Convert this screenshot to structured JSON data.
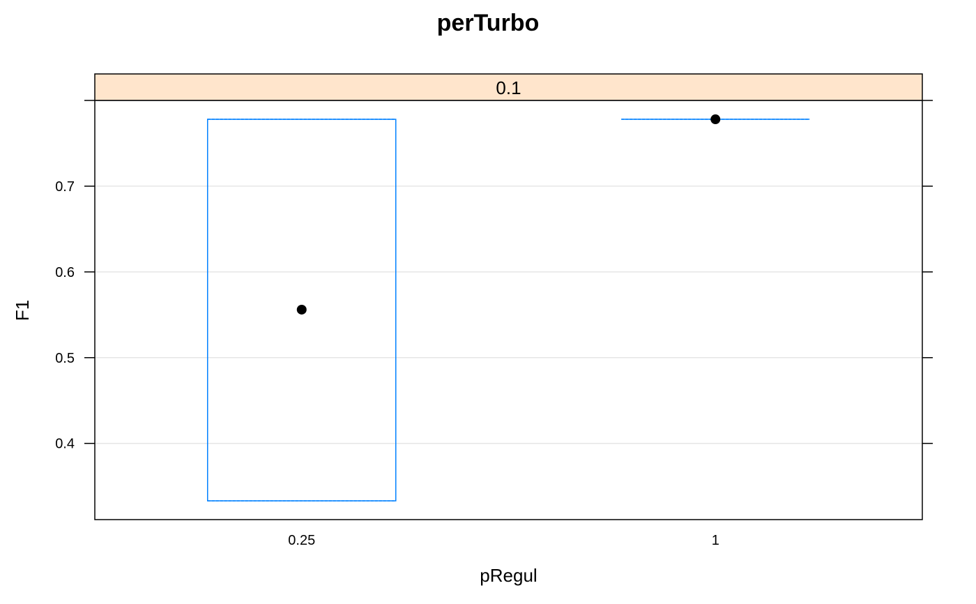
{
  "chart_data": {
    "type": "box",
    "title": "perTurbo",
    "panel_label": "0.1",
    "xlabel": "pRegul",
    "ylabel": "F1",
    "categories": [
      "0.25",
      "1"
    ],
    "boxes": [
      {
        "category": "0.25",
        "median": 0.556,
        "q1": 0.333,
        "q3": 0.778,
        "whisker_low": 0.333,
        "whisker_high": 0.778
      },
      {
        "category": "1",
        "median": 0.778,
        "q1": 0.778,
        "q3": 0.778,
        "whisker_low": 0.778,
        "whisker_high": 0.778
      }
    ],
    "yticks": [
      0.4,
      0.5,
      0.6,
      0.7
    ],
    "ytick_labels": [
      "0.4",
      "0.5",
      "0.6",
      "0.7"
    ],
    "ylim": [
      0.3111,
      0.8
    ],
    "grid": true
  },
  "colors": {
    "strip": "#ffe5cc",
    "box": "#0080ff",
    "median_dot": "#000000",
    "grid": "#e6e6e6"
  }
}
